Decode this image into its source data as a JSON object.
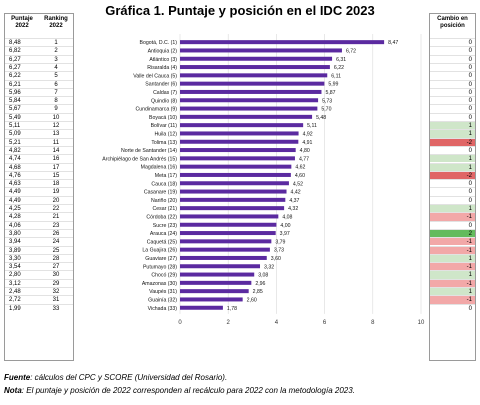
{
  "title": "Gráfica 1. Puntaje y posición en el IDC 2023",
  "left_table": {
    "header_score": [
      "Puntaje",
      "2022"
    ],
    "header_rank": [
      "Ranking",
      "2022"
    ]
  },
  "right_table": {
    "header": [
      "Cambio en",
      "posición"
    ]
  },
  "chart_data": {
    "type": "bar",
    "orientation": "horizontal",
    "xlim": [
      0,
      10
    ],
    "xticks": [
      0,
      2,
      4,
      6,
      8,
      10
    ],
    "bar_color": "#5b2aa0",
    "categories": [
      "Bogotá, D.C. (1)",
      "Antioquia (2)",
      "Atlántico (3)",
      "Risaralda (4)",
      "Valle del Cauca (5)",
      "Santander (6)",
      "Caldas (7)",
      "Quindío (8)",
      "Cundinamarca (9)",
      "Boyacá (10)",
      "Bolívar (11)",
      "Huila (12)",
      "Tolima (13)",
      "Norte de Santander (14)",
      "Archipiélago de San Andrés (15)",
      "Magdalena (16)",
      "Meta (17)",
      "Cauca (18)",
      "Casanare (19)",
      "Nariño (20)",
      "Cesar (21)",
      "Córdoba (22)",
      "Sucre (23)",
      "Arauca (24)",
      "Caquetá (25)",
      "La Guajira (26)",
      "Guaviare (27)",
      "Putumayo (28)",
      "Chocó (29)",
      "Amazonas (30)",
      "Vaupés (31)",
      "Guainía (32)",
      "Vichada (33)"
    ],
    "values": [
      8.47,
      6.72,
      6.31,
      6.22,
      6.11,
      5.99,
      5.87,
      5.73,
      5.7,
      5.48,
      5.11,
      4.92,
      4.91,
      4.8,
      4.77,
      4.62,
      4.6,
      4.52,
      4.42,
      4.37,
      4.32,
      4.08,
      4.0,
      3.97,
      3.79,
      3.73,
      3.6,
      3.32,
      3.08,
      2.96,
      2.85,
      2.6,
      1.78
    ],
    "value_labels": [
      "8,47",
      "6,72",
      "6,31",
      "6,22",
      "6,11",
      "5,99",
      "5,87",
      "5,73",
      "5,70",
      "5,48",
      "5,11",
      "4,92",
      "4,91",
      "4,80",
      "4,77",
      "4,62",
      "4,60",
      "4,52",
      "4,42",
      "4,37",
      "4,32",
      "4,08",
      "4,00",
      "3,97",
      "3,79",
      "3,73",
      "3,60",
      "3,32",
      "3,08",
      "2,96",
      "2,85",
      "2,60",
      "1,78"
    ],
    "score_2022": [
      "8,48",
      "6,82",
      "6,27",
      "6,27",
      "6,22",
      "6,21",
      "5,96",
      "5,84",
      "5,67",
      "5,49",
      "5,11",
      "5,09",
      "5,21",
      "4,82",
      "4,74",
      "4,68",
      "4,76",
      "4,63",
      "4,49",
      "4,49",
      "4,25",
      "4,28",
      "4,06",
      "3,80",
      "3,94",
      "3,89",
      "3,30",
      "3,54",
      "2,80",
      "3,12",
      "2,48",
      "2,72",
      "1,99"
    ],
    "rank_2022": [
      "1",
      "2",
      "3",
      "4",
      "5",
      "6",
      "7",
      "8",
      "9",
      "10",
      "12",
      "13",
      "11",
      "14",
      "16",
      "17",
      "15",
      "18",
      "19",
      "20",
      "22",
      "21",
      "23",
      "26",
      "24",
      "25",
      "28",
      "27",
      "30",
      "29",
      "32",
      "31",
      "33"
    ],
    "rank_change": [
      "0",
      "0",
      "0",
      "0",
      "0",
      "0",
      "0",
      "0",
      "0",
      "0",
      "1",
      "1",
      "-2",
      "0",
      "1",
      "1",
      "-2",
      "0",
      "0",
      "0",
      "1",
      "-1",
      "0",
      "2",
      "-1",
      "-1",
      "1",
      "-1",
      "1",
      "-1",
      "1",
      "-1",
      "0"
    ],
    "change_colors": {
      "up": "#cfe6c9",
      "down": "#f2a8a8",
      "up_strong": "#63bb5d",
      "down_strong": "#e06666",
      "none": "#ffffff"
    }
  },
  "footer": {
    "source_label": "Fuente",
    "source_text": ": cálculos del CPC y SCORE (Universidad del Rosario).",
    "note_label": "Nota",
    "note_text": ": El puntaje y posición de 2022 corresponden al recálculo para 2022 con la metodología 2023."
  }
}
